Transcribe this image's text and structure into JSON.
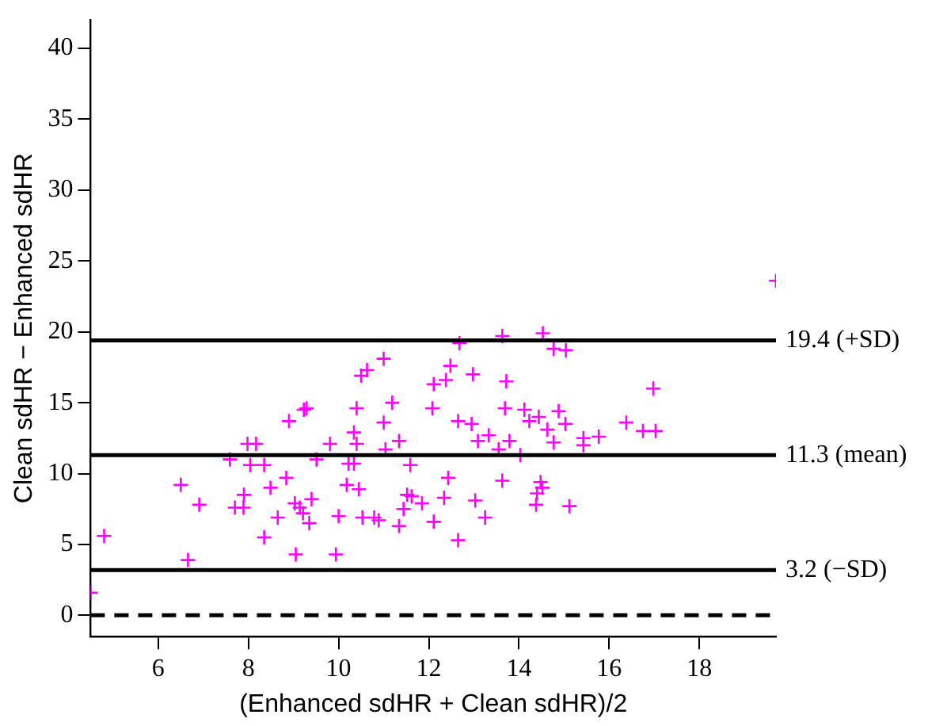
{
  "chart_data": {
    "type": "scatter",
    "xlabel": "(Enhanced sdHR + Clean sdHR)/2",
    "ylabel": "Clean sdHR − Enhanced sdHR",
    "marker": "cross",
    "grid": false,
    "legend": false,
    "xlim": [
      4.5,
      19.7
    ],
    "ylim": [
      -1.5,
      42
    ],
    "xticks": [
      6,
      8,
      10,
      12,
      14,
      16,
      18
    ],
    "yticks": [
      0,
      5,
      10,
      15,
      20,
      25,
      30,
      35,
      40
    ],
    "series": [
      {
        "color": "#ff00ff",
        "x": [
          4.5,
          4.8,
          6.5,
          6.66,
          6.91,
          7.59,
          7.7,
          7.89,
          7.9,
          7.98,
          8.17,
          8.04,
          8.35,
          8.35,
          8.49,
          8.65,
          8.84,
          8.9,
          9.03,
          9.05,
          9.14,
          9.21,
          9.23,
          9.29,
          9.35,
          9.4,
          9.51,
          9.81,
          9.94,
          10.0,
          10.18,
          10.22,
          10.34,
          10.34,
          10.4,
          10.4,
          10.45,
          10.53,
          10.5,
          10.63,
          10.79,
          10.89,
          11.0,
          11.0,
          11.04,
          11.19,
          11.34,
          11.34,
          11.44,
          11.52,
          11.59,
          11.62,
          11.85,
          12.11,
          12.08,
          12.11,
          12.68,
          13.63,
          14.53,
          14.77,
          15.04,
          12.48,
          12.38,
          12.98,
          13.72,
          16.98,
          13.69,
          12.65,
          12.95,
          14.12,
          14.23,
          14.44,
          14.88,
          15.03,
          14.63,
          13.09,
          13.33,
          13.79,
          13.55,
          14.03,
          14.77,
          15.43,
          15.43,
          15.77,
          16.38,
          16.75,
          17.03,
          12.43,
          13.63,
          14.48,
          14.52,
          14.4,
          12.34,
          13.03,
          14.38,
          15.12,
          13.25,
          12.65,
          19.7
        ],
        "values": [
          1.6,
          5.6,
          9.2,
          3.9,
          7.8,
          11.0,
          7.6,
          7.6,
          8.5,
          12.1,
          12.1,
          10.6,
          10.6,
          5.5,
          9.0,
          6.9,
          9.7,
          13.7,
          7.9,
          4.3,
          7.6,
          7.2,
          14.5,
          14.6,
          6.5,
          8.2,
          11.0,
          12.1,
          4.3,
          7.0,
          9.2,
          10.7,
          10.7,
          12.9,
          12.1,
          14.6,
          8.9,
          6.9,
          16.9,
          17.3,
          6.9,
          6.7,
          18.1,
          13.6,
          11.7,
          15.0,
          12.3,
          6.3,
          7.5,
          8.5,
          10.6,
          8.4,
          7.9,
          16.3,
          14.6,
          6.6,
          19.2,
          19.7,
          19.9,
          18.8,
          18.7,
          17.6,
          16.6,
          17.0,
          16.5,
          16.0,
          14.6,
          13.7,
          13.5,
          14.5,
          13.7,
          14.0,
          14.4,
          13.5,
          13.1,
          12.3,
          12.7,
          12.3,
          11.7,
          11.3,
          12.2,
          12.5,
          12.0,
          12.6,
          13.6,
          13.0,
          13.0,
          9.7,
          9.5,
          9.4,
          9.0,
          8.6,
          8.3,
          8.1,
          7.8,
          7.7,
          6.9,
          5.3,
          23.6
        ]
      }
    ],
    "ref_lines": [
      {
        "axis": "y",
        "value": 19.4,
        "label": "19.4 (+SD)",
        "color": "#000000",
        "line_style": "solid"
      },
      {
        "axis": "y",
        "value": 11.3,
        "label": "11.3 (mean)",
        "color": "#000000",
        "line_style": "solid"
      },
      {
        "axis": "y",
        "value": 3.2,
        "label": "3.2 (−SD)",
        "color": "#000000",
        "line_style": "solid"
      },
      {
        "axis": "y",
        "value": 0,
        "color": "#000000",
        "line_style": "dashed"
      }
    ]
  }
}
